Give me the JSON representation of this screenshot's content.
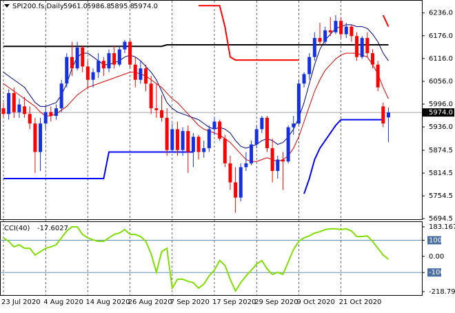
{
  "header": {
    "symbol": "SPI200.fs,Daily",
    "ohlc": [
      "5961.0",
      "5986.8",
      "5895.8",
      "5974.0"
    ]
  },
  "chart_data": [
    {
      "type": "candlestick",
      "categories": [
        "23 Jul 2020",
        null,
        null,
        null,
        null,
        null,
        null,
        null,
        "4 Aug 2020",
        null,
        null,
        null,
        null,
        null,
        null,
        null,
        "14 Aug 2020",
        null,
        null,
        null,
        null,
        null,
        null,
        null,
        "26 Aug 2020",
        null,
        null,
        null,
        null,
        null,
        null,
        null,
        "7 Sep 2020",
        null,
        null,
        null,
        null,
        null,
        null,
        null,
        "17 Sep 2020",
        null,
        null,
        null,
        null,
        null,
        null,
        null,
        "29 Sep 2020",
        null,
        null,
        null,
        null,
        null,
        null,
        null,
        "9 Oct 2020",
        null,
        null,
        null,
        null,
        null,
        null,
        null,
        "21 Oct 2020",
        null,
        null,
        null,
        null,
        null,
        null,
        null,
        null,
        null
      ],
      "candles": [
        [
          5985,
          6000,
          5960,
          5970
        ],
        [
          5970,
          6035,
          5955,
          6025
        ],
        [
          6025,
          6040,
          5960,
          5975
        ],
        [
          5975,
          6010,
          5960,
          5995
        ],
        [
          5990,
          6015,
          5960,
          5970
        ],
        [
          5970,
          5990,
          5930,
          5945
        ],
        [
          5945,
          5960,
          5815,
          5870
        ],
        [
          5870,
          5960,
          5820,
          5945
        ],
        [
          5945,
          5990,
          5930,
          5975
        ],
        [
          5975,
          5990,
          5950,
          5965
        ],
        [
          5965,
          5995,
          5955,
          5985
        ],
        [
          5985,
          6060,
          5975,
          6050
        ],
        [
          6050,
          6130,
          6040,
          6120
        ],
        [
          6120,
          6160,
          6070,
          6090
        ],
        [
          6090,
          6160,
          6085,
          6145
        ],
        [
          6145,
          6150,
          6080,
          6095
        ],
        [
          6095,
          6110,
          6040,
          6060
        ],
        [
          6060,
          6090,
          6040,
          6080
        ],
        [
          6080,
          6130,
          6065,
          6110
        ],
        [
          6110,
          6120,
          6070,
          6090
        ],
        [
          6090,
          6140,
          6080,
          6130
        ],
        [
          6130,
          6150,
          6090,
          6100
        ],
        [
          6100,
          6150,
          6095,
          6140
        ],
        [
          6140,
          6165,
          6130,
          6160
        ],
        [
          6160,
          6165,
          6090,
          6100
        ],
        [
          6100,
          6120,
          6040,
          6060
        ],
        [
          6060,
          6110,
          6050,
          6090
        ],
        [
          6090,
          6100,
          6030,
          6050
        ],
        [
          6050,
          6070,
          5970,
          5985
        ],
        [
          5985,
          6050,
          5960,
          5980
        ],
        [
          5980,
          6020,
          5950,
          5960
        ],
        [
          5960,
          5985,
          5860,
          5875
        ],
        [
          5875,
          5945,
          5870,
          5930
        ],
        [
          5930,
          5950,
          5860,
          5875
        ],
        [
          5875,
          5935,
          5860,
          5925
        ],
        [
          5925,
          5940,
          5815,
          5870
        ],
        [
          5870,
          5920,
          5830,
          5910
        ],
        [
          5910,
          5915,
          5850,
          5870
        ],
        [
          5870,
          5900,
          5855,
          5880
        ],
        [
          5880,
          5940,
          5870,
          5930
        ],
        [
          5930,
          5960,
          5915,
          5950
        ],
        [
          5950,
          5955,
          5900,
          5905
        ],
        [
          5905,
          5915,
          5830,
          5840
        ],
        [
          5840,
          5860,
          5770,
          5790
        ],
        [
          5790,
          5830,
          5710,
          5750
        ],
        [
          5750,
          5840,
          5740,
          5830
        ],
        [
          5830,
          5870,
          5820,
          5840
        ],
        [
          5840,
          5900,
          5835,
          5890
        ],
        [
          5890,
          5940,
          5880,
          5930
        ],
        [
          5930,
          5965,
          5920,
          5960
        ],
        [
          5960,
          5965,
          5870,
          5880
        ],
        [
          5880,
          5905,
          5790,
          5820
        ],
        [
          5820,
          5860,
          5800,
          5850
        ],
        [
          5850,
          5870,
          5770,
          5845
        ],
        [
          5845,
          5940,
          5840,
          5935
        ],
        [
          5935,
          5965,
          5915,
          5945
        ],
        [
          5945,
          6060,
          5940,
          6050
        ],
        [
          6050,
          6080,
          6040,
          6075
        ],
        [
          6075,
          6130,
          6060,
          6120
        ],
        [
          6120,
          6185,
          6110,
          6170
        ],
        [
          6170,
          6210,
          6150,
          6160
        ],
        [
          6160,
          6200,
          6150,
          6190
        ],
        [
          6190,
          6225,
          6175,
          6185
        ],
        [
          6185,
          6230,
          6180,
          6215
        ],
        [
          6215,
          6225,
          6170,
          6180
        ],
        [
          6180,
          6210,
          6170,
          6200
        ],
        [
          6200,
          6205,
          6160,
          6175
        ],
        [
          6175,
          6185,
          6110,
          6120
        ],
        [
          6120,
          6175,
          6115,
          6170
        ],
        [
          6170,
          6185,
          6120,
          6130
        ],
        [
          6130,
          6140,
          6090,
          6100
        ],
        [
          6100,
          6110,
          6030,
          6040
        ],
        [
          5990,
          6000,
          5935,
          5945
        ],
        [
          5961.0,
          5986.8,
          5895.8,
          5974.0
        ]
      ],
      "up_color": "#1530e0",
      "down_color": "#ff0000",
      "series": [
        {
          "color": "#000080",
          "width": 1,
          "values": [
            6080,
            6070,
            6060,
            6050,
            6040,
            6020,
            6000,
            5990,
            5990,
            5995,
            6000,
            6020,
            6050,
            6090,
            6120,
            6130,
            6130,
            6120,
            6110,
            6100,
            6100,
            6105,
            6110,
            6120,
            6125,
            6120,
            6110,
            6095,
            6080,
            6060,
            6030,
            6000,
            5985,
            5975,
            5970,
            5965,
            5960,
            5955,
            5945,
            5935,
            5930,
            5935,
            5930,
            5920,
            5900,
            5885,
            5880,
            5885,
            5890,
            5900,
            5905,
            5900,
            5890,
            5895,
            5910,
            5930,
            5960,
            6000,
            6050,
            6100,
            6140,
            6165,
            6180,
            6195,
            6200,
            6205,
            6205,
            6200,
            6200,
            6195,
            6180,
            6160,
            6130,
            6110
          ]
        },
        {
          "color": "#e00000",
          "width": 1,
          "values": [
            6050,
            6040,
            6030,
            6020,
            6010,
            6000,
            5990,
            5975,
            5965,
            5965,
            5970,
            5980,
            5990,
            6005,
            6020,
            6030,
            6040,
            6045,
            6050,
            6055,
            6060,
            6065,
            6070,
            6075,
            6080,
            6080,
            6075,
            6070,
            6060,
            6050,
            6040,
            6025,
            6010,
            6000,
            5985,
            5970,
            5955,
            5940,
            5930,
            5925,
            5920,
            5915,
            5905,
            5895,
            5880,
            5865,
            5850,
            5845,
            5845,
            5850,
            5855,
            5850,
            5845,
            5850,
            5860,
            5880,
            5910,
            5950,
            5990,
            6030,
            6060,
            6085,
            6100,
            6115,
            6125,
            6130,
            6130,
            6130,
            6125,
            6120,
            6100,
            6075,
            6040,
            6010
          ]
        },
        {
          "color": "#000000",
          "width": 2,
          "values": [
            6148,
            6148,
            6148,
            6148,
            6148,
            6148,
            6148,
            6148,
            6148,
            6148,
            6148,
            6148,
            6148,
            6148,
            6148,
            6148,
            6148,
            6148,
            6148,
            6148,
            6148,
            6148,
            6148,
            6148,
            6148,
            6148,
            6148,
            6148,
            6148,
            6148,
            6148,
            6152,
            6152,
            6152,
            6152,
            6152,
            6152,
            6152,
            6152,
            6152,
            6152,
            6152,
            6152,
            6152,
            6152,
            6152,
            6152,
            6152,
            6152,
            6152,
            6152,
            6152,
            6152,
            6152,
            6152,
            6152,
            6152,
            6152,
            6152,
            6152,
            6152,
            6152,
            6152,
            6152,
            6152,
            6152,
            6152,
            6152,
            6152,
            6152,
            6152,
            6152,
            6152,
            6152
          ]
        },
        {
          "color": "#0000ff",
          "width": 2,
          "values": [
            5800,
            5800,
            5800,
            5800,
            5800,
            5800,
            5800,
            5800,
            5800,
            5800,
            5800,
            5800,
            5800,
            5800,
            5800,
            5800,
            5800,
            5800,
            5800,
            5800,
            5870,
            5870,
            5870,
            5870,
            5870,
            5870,
            5870,
            5870,
            5870,
            5870,
            5870,
            5870,
            5870,
            5870,
            5870,
            5870,
            5870,
            null,
            null,
            null,
            null,
            null,
            null,
            null,
            null,
            null,
            null,
            null,
            null,
            null,
            null,
            null,
            null,
            null,
            null,
            null,
            null,
            5760,
            5800,
            5850,
            5880,
            5900,
            5920,
            5940,
            5955,
            5955,
            5955,
            5955,
            5955,
            5955,
            5955,
            5955,
            5955,
            null
          ]
        },
        {
          "color": "#ff0000",
          "width": 2,
          "values": [
            null,
            null,
            null,
            null,
            null,
            null,
            null,
            null,
            null,
            null,
            null,
            null,
            null,
            null,
            null,
            null,
            null,
            null,
            null,
            null,
            null,
            null,
            null,
            null,
            null,
            null,
            null,
            null,
            null,
            null,
            null,
            null,
            null,
            null,
            null,
            null,
            null,
            6255,
            6255,
            6255,
            6255,
            6255,
            6200,
            6120,
            6112,
            6112,
            6112,
            6112,
            6112,
            6112,
            6112,
            6112,
            6112,
            6112,
            6112,
            6112,
            6112,
            null,
            null,
            null,
            null,
            null,
            null,
            null,
            null,
            null,
            null,
            null,
            null,
            null,
            null,
            null,
            6230,
            6200
          ]
        }
      ],
      "current_price": {
        "value": 5974.0,
        "label": "5974.0"
      },
      "ylim": [
        5693,
        6270
      ],
      "yticks": [
        {
          "value": 6236,
          "label": "6236.0"
        },
        {
          "value": 6176,
          "label": "6176.0"
        },
        {
          "value": 6116,
          "label": "6116.0"
        },
        {
          "value": 6056,
          "label": "6056.0"
        },
        {
          "value": 5996,
          "label": "5996.0"
        },
        {
          "value": 5936,
          "label": "5936.0"
        },
        5874.5,
        5814.5,
        5754.5,
        5694.5
      ]
    },
    {
      "type": "line",
      "name": "CCI(40)",
      "last_value": -17.6027,
      "color": "#7fe000",
      "values": [
        115,
        93,
        59,
        72,
        50,
        50,
        8,
        29,
        50,
        59,
        72,
        115,
        157,
        183,
        183,
        136,
        115,
        102,
        93,
        93,
        115,
        136,
        145,
        166,
        136,
        136,
        123,
        93,
        16,
        -99,
        29,
        50,
        -197,
        -142,
        -142,
        -155,
        -163,
        -197,
        -172,
        -121,
        -86,
        -26,
        -56,
        -142,
        -215,
        -163,
        -121,
        -86,
        -48,
        -26,
        -78,
        -112,
        -99,
        -112,
        -35,
        42,
        93,
        115,
        127,
        145,
        153,
        166,
        171,
        171,
        166,
        171,
        157,
        123,
        123,
        127,
        93,
        50,
        8,
        -17.6027
      ],
      "levels": [
        100,
        -100
      ],
      "ylim": [
        -218.799,
        183.1673
      ],
      "yticks": [
        183.1673,
        100,
        {
          "value": 0,
          "label": "0.00"
        },
        -100,
        -218.799
      ]
    }
  ]
}
